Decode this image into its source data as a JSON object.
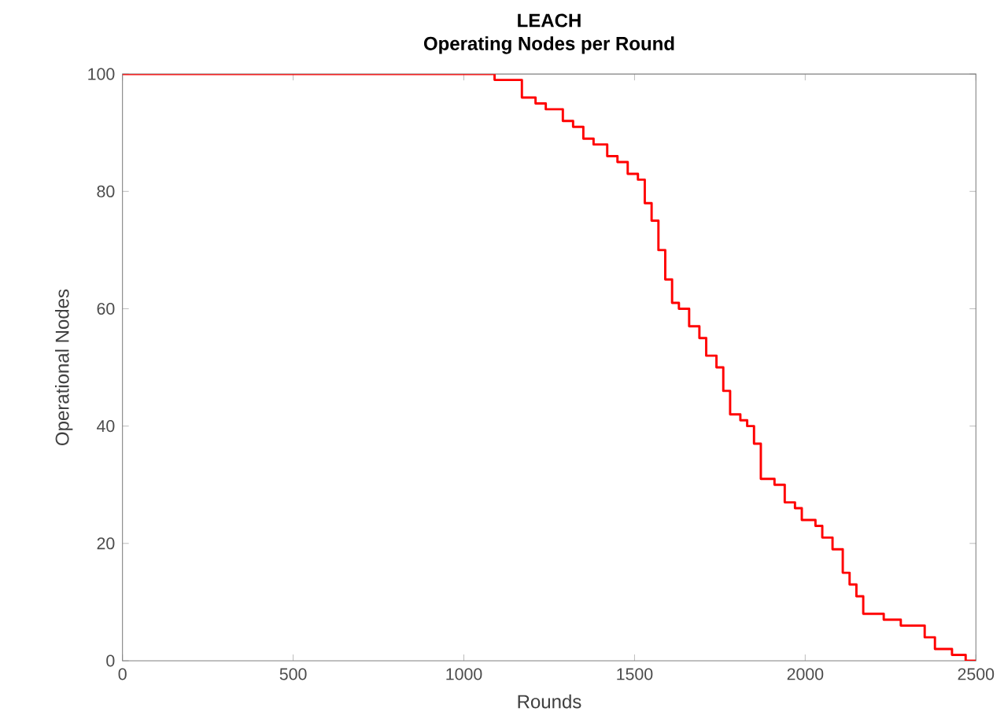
{
  "chart_data": {
    "type": "step",
    "title": "LEACH",
    "subtitle": "Operating Nodes per Round",
    "xlabel": "Rounds",
    "ylabel": "Operational Nodes",
    "x": [
      0,
      1090,
      1170,
      1210,
      1240,
      1290,
      1320,
      1350,
      1380,
      1420,
      1450,
      1480,
      1510,
      1530,
      1550,
      1570,
      1590,
      1610,
      1630,
      1660,
      1690,
      1710,
      1740,
      1760,
      1780,
      1810,
      1830,
      1850,
      1870,
      1910,
      1940,
      1970,
      1990,
      2030,
      2050,
      2080,
      2110,
      2130,
      2150,
      2170,
      2230,
      2280,
      2350,
      2380,
      2430,
      2470,
      2500
    ],
    "series": [
      {
        "color": "#ff0000",
        "values": [
          100,
          99,
          96,
          95,
          94,
          92,
          91,
          89,
          88,
          86,
          85,
          83,
          82,
          78,
          75,
          70,
          65,
          61,
          60,
          57,
          55,
          52,
          50,
          46,
          42,
          41,
          40,
          37,
          31,
          30,
          27,
          26,
          24,
          23,
          21,
          19,
          15,
          13,
          11,
          8,
          7,
          6,
          4,
          2,
          1,
          0,
          0
        ]
      }
    ],
    "xlim": [
      0,
      2500
    ],
    "ylim": [
      0,
      100
    ],
    "xticks": [
      0,
      500,
      1000,
      1500,
      2000,
      2500
    ],
    "yticks": [
      0,
      20,
      40,
      60,
      80,
      100
    ],
    "grid": false
  }
}
